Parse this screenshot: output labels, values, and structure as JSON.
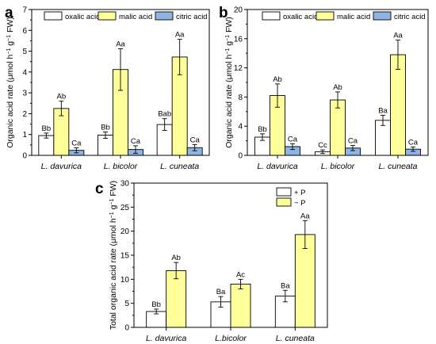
{
  "colors": {
    "open": "#ffffff",
    "yellow": "#ffff99",
    "blue": "#8db4e2",
    "stroke": "#000000"
  },
  "chart_data": [
    {
      "type": "bar",
      "panel": "a",
      "ylabel": "Organic acid rate (μmol h⁻¹ g⁻¹ FW)",
      "ylim": [
        0,
        7
      ],
      "yticks": [
        0,
        1,
        2,
        3,
        4,
        5,
        6,
        7
      ],
      "categories": [
        "L. davurica",
        "L. bicolor",
        "L. cuneata"
      ],
      "legend_position": "top",
      "series": [
        {
          "name": "oxalic acid",
          "color": "#ffffff",
          "values": [
            0.95,
            0.97,
            1.48
          ],
          "errors": [
            0.12,
            0.15,
            0.28
          ],
          "labels": [
            "Bb",
            "Bb",
            "Bab"
          ]
        },
        {
          "name": "malic acid",
          "color": "#ffff99",
          "values": [
            2.25,
            4.12,
            4.72
          ],
          "errors": [
            0.35,
            1.0,
            0.85
          ],
          "labels": [
            "Ab",
            "Aa",
            "Aa"
          ]
        },
        {
          "name": "citric acid",
          "color": "#8db4e2",
          "values": [
            0.24,
            0.28,
            0.37
          ],
          "errors": [
            0.12,
            0.18,
            0.15
          ],
          "labels": [
            "Ca",
            "Ca",
            "Ca"
          ]
        }
      ]
    },
    {
      "type": "bar",
      "panel": "b",
      "ylabel": "Organic acid rate (μmol h⁻¹ g⁻¹ FW)",
      "ylim": [
        0,
        20
      ],
      "yticks": [
        0,
        4,
        8,
        12,
        16,
        20
      ],
      "categories": [
        "L. davurica",
        "L. bicolor",
        "L. cuneata"
      ],
      "legend_position": "top",
      "series": [
        {
          "name": "oxalic acid",
          "color": "#ffffff",
          "values": [
            2.5,
            0.5,
            4.8
          ],
          "errors": [
            0.45,
            0.25,
            0.7
          ],
          "labels": [
            "Bb",
            "Cc",
            "Ba"
          ]
        },
        {
          "name": "malic acid",
          "color": "#ffff99",
          "values": [
            8.2,
            7.6,
            13.8
          ],
          "errors": [
            1.6,
            1.1,
            2.0
          ],
          "labels": [
            "Ab",
            "Ab",
            "Aa"
          ]
        },
        {
          "name": "citric acid",
          "color": "#8db4e2",
          "values": [
            1.2,
            1.0,
            0.85
          ],
          "errors": [
            0.4,
            0.35,
            0.3
          ],
          "labels": [
            "Ca",
            "Ca",
            "Ca"
          ]
        }
      ]
    },
    {
      "type": "bar",
      "panel": "c",
      "ylabel": "Total organic acid rate (μmol h⁻¹ g⁻¹ FW)",
      "ylim": [
        0,
        30
      ],
      "yticks": [
        0,
        5,
        10,
        15,
        20,
        25,
        30
      ],
      "categories": [
        "L. davurica",
        "L.bicolor",
        "L. cuneata"
      ],
      "legend_position": "top-right",
      "series": [
        {
          "name": "+ P",
          "color": "#ffffff",
          "values": [
            3.3,
            5.3,
            6.5
          ],
          "errors": [
            0.5,
            1.1,
            1.2
          ],
          "labels": [
            "Bb",
            "Ba",
            "Ba"
          ]
        },
        {
          "name": "− P",
          "color": "#ffff99",
          "values": [
            11.8,
            9.0,
            19.3
          ],
          "errors": [
            1.7,
            1.0,
            2.9
          ],
          "labels": [
            "Ab",
            "Ac",
            "Aa"
          ]
        }
      ]
    }
  ]
}
